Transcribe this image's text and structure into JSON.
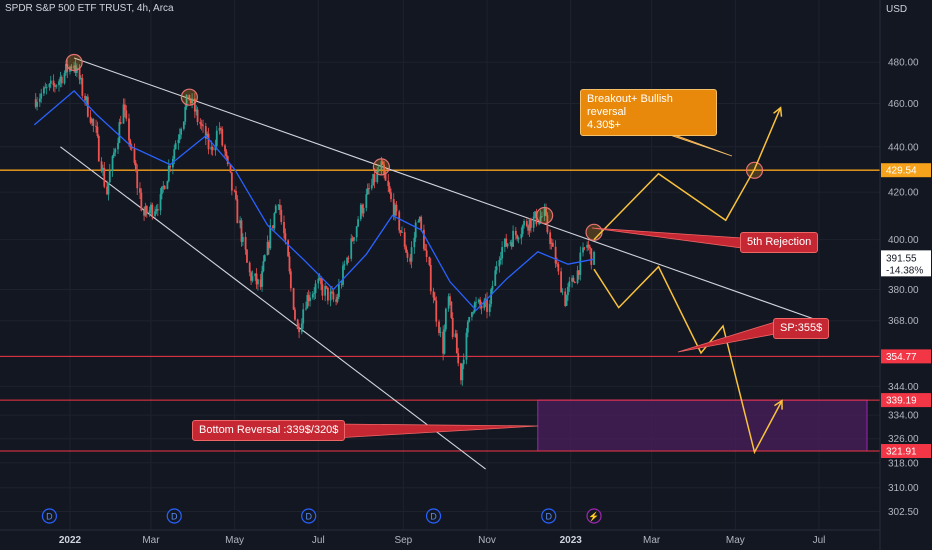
{
  "header": {
    "title": "SPDR S&P 500 ETF TRUST, 4h, Arca",
    "currency": "USD"
  },
  "colors": {
    "background": "#131722",
    "grid": "#1e222d",
    "up_candle": "#26a69a",
    "down_candle": "#ef5350",
    "moving_average": "#2962ff",
    "trendline": "#d1d4dc",
    "orange_level": "#f7a21b",
    "red_level": "#f23645",
    "projection": "#f9c23c",
    "zone_fill": "#4a1f5c"
  },
  "annotations": {
    "breakout": "Breakout+ Bullish reversal\n4.30$+",
    "rejection": "5th Rejection",
    "sp": "SP:355$",
    "bottom": "Bottom Reversal :339$/320$"
  },
  "chart_data": {
    "type": "candlestick",
    "title": "SPDR S&P 500 ETF TRUST, 4h, Arca",
    "ylabel": "USD",
    "log_scale": true,
    "ylim": [
      300.5,
      490
    ],
    "grid": true,
    "y_ticks": [
      302.5,
      310.0,
      318.0,
      326.0,
      334.0,
      344.0,
      354.77,
      368.0,
      380.0,
      400.0,
      420.0,
      440.0,
      460.0,
      480.0
    ],
    "x_ticks": [
      {
        "label": "2022",
        "date": "2022-01-01"
      },
      {
        "label": "Mar",
        "date": "2022-03-01"
      },
      {
        "label": "May",
        "date": "2022-05-01"
      },
      {
        "label": "Jul",
        "date": "2022-07-01"
      },
      {
        "label": "Sep",
        "date": "2022-09-01"
      },
      {
        "label": "Nov",
        "date": "2022-11-01"
      },
      {
        "label": "2023",
        "date": "2023-01-01"
      },
      {
        "label": "Mar",
        "date": "2023-03-01"
      },
      {
        "label": "May",
        "date": "2023-05-01"
      },
      {
        "label": "Jul",
        "date": "2023-07-01"
      }
    ],
    "price_path": [
      [
        "2021-12-06",
        462
      ],
      [
        "2021-12-20",
        468
      ],
      [
        "2022-01-04",
        479.8
      ],
      [
        "2022-01-20",
        446
      ],
      [
        "2022-01-28",
        420
      ],
      [
        "2022-02-09",
        458
      ],
      [
        "2022-02-24",
        410
      ],
      [
        "2022-03-08",
        416
      ],
      [
        "2022-03-29",
        463
      ],
      [
        "2022-04-14",
        438
      ],
      [
        "2022-04-20",
        449
      ],
      [
        "2022-05-12",
        386
      ],
      [
        "2022-05-20",
        381
      ],
      [
        "2022-06-02",
        418
      ],
      [
        "2022-06-16",
        364
      ],
      [
        "2022-06-22",
        376
      ],
      [
        "2022-07-01",
        382
      ],
      [
        "2022-07-14",
        375
      ],
      [
        "2022-08-01",
        412
      ],
      [
        "2022-08-16",
        431
      ],
      [
        "2022-09-06",
        391
      ],
      [
        "2022-09-12",
        411
      ],
      [
        "2022-09-30",
        358
      ],
      [
        "2022-10-04",
        376
      ],
      [
        "2022-10-13",
        348
      ],
      [
        "2022-10-21",
        374
      ],
      [
        "2022-11-03",
        373
      ],
      [
        "2022-11-10",
        395
      ],
      [
        "2022-11-30",
        407
      ],
      [
        "2022-12-13",
        410
      ],
      [
        "2022-12-28",
        376
      ],
      [
        "2023-01-06",
        387
      ],
      [
        "2023-01-13",
        398
      ],
      [
        "2023-01-18",
        391.55
      ]
    ],
    "moving_average": [
      [
        "2021-12-06",
        450
      ],
      [
        "2022-01-04",
        466
      ],
      [
        "2022-01-20",
        455
      ],
      [
        "2022-02-15",
        440
      ],
      [
        "2022-03-15",
        432
      ],
      [
        "2022-04-10",
        445
      ],
      [
        "2022-05-01",
        430
      ],
      [
        "2022-05-25",
        406
      ],
      [
        "2022-06-20",
        392
      ],
      [
        "2022-07-12",
        380
      ],
      [
        "2022-08-05",
        394
      ],
      [
        "2022-08-24",
        410
      ],
      [
        "2022-09-14",
        404
      ],
      [
        "2022-10-05",
        383
      ],
      [
        "2022-10-24",
        372
      ],
      [
        "2022-11-15",
        384
      ],
      [
        "2022-12-08",
        395
      ],
      [
        "2022-12-30",
        390
      ],
      [
        "2023-01-18",
        392
      ]
    ],
    "markers": {
      "last_price": 391.55,
      "last_change": "-14.38%",
      "resistance": 429.54,
      "support": 354.77,
      "zone_top": 339.19,
      "zone_bottom": 321.91
    },
    "trendlines": [
      {
        "name": "upper",
        "start": [
          "2022-01-04",
          482
        ],
        "end": [
          "2023-07-01",
          368
        ]
      },
      {
        "name": "lower",
        "start": [
          "2021-12-25",
          440
        ],
        "end": [
          "2022-10-31",
          316
        ]
      }
    ],
    "touch_points": [
      [
        "2022-01-04",
        479.8
      ],
      [
        "2022-03-29",
        463
      ],
      [
        "2022-08-16",
        431
      ],
      [
        "2022-12-13",
        410
      ],
      [
        "2023-01-18",
        403
      ],
      [
        "2023-05-15",
        429.5
      ]
    ],
    "zone": {
      "start": "2022-12-08",
      "end": "2023-08-05",
      "low": 321.91,
      "high": 339.19
    },
    "projection_bull": [
      [
        "2023-01-18",
        400
      ],
      [
        "2023-03-06",
        428
      ],
      [
        "2023-04-24",
        408
      ],
      [
        "2023-05-15",
        430
      ],
      [
        "2023-06-03",
        458
      ]
    ],
    "projection_bear": [
      [
        "2023-01-18",
        388
      ],
      [
        "2023-02-05",
        373
      ],
      [
        "2023-03-06",
        389
      ],
      [
        "2023-04-06",
        356
      ],
      [
        "2023-04-22",
        366
      ],
      [
        "2023-05-15",
        321.5
      ],
      [
        "2023-06-04",
        339
      ]
    ],
    "event_markers": [
      {
        "label": "D",
        "date": "2021-12-17"
      },
      {
        "label": "D",
        "date": "2022-03-18"
      },
      {
        "label": "D",
        "date": "2022-06-24"
      },
      {
        "label": "D",
        "date": "2022-09-23"
      },
      {
        "label": "D",
        "date": "2022-12-16"
      },
      {
        "label": "⚡",
        "date": "2023-01-18"
      }
    ]
  }
}
